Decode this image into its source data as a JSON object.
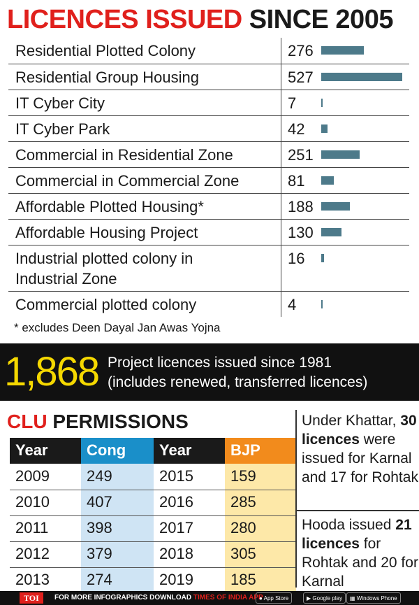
{
  "title": {
    "part1": "LICENCES ISSUED",
    "part2": "SINCE 2005"
  },
  "chart_data": {
    "type": "bar",
    "title": "LICENCES ISSUED SINCE 2005",
    "categories": [
      "Residential Plotted Colony",
      "Residential Group Housing",
      "IT Cyber City",
      "IT Cyber Park",
      "Commercial in Residential Zone",
      "Commercial in Commercial Zone",
      "Affordable Plotted Housing*",
      "Affordable Housing Project",
      "Industrial plotted colony in Industrial Zone",
      "Commercial plotted colony"
    ],
    "values": [
      276,
      527,
      7,
      42,
      251,
      81,
      188,
      130,
      16,
      4
    ],
    "bar_color": "#4d7a8a",
    "footnote": "* excludes Deen Dayal Jan Awas Yojna"
  },
  "category_lines": [
    [
      "Residential Plotted Colony"
    ],
    [
      "Residential Group Housing"
    ],
    [
      "IT Cyber City"
    ],
    [
      "IT Cyber Park"
    ],
    [
      "Commercial in Residential Zone"
    ],
    [
      "Commercial in Commercial Zone"
    ],
    [
      "Affordable Plotted Housing*"
    ],
    [
      "Affordable Housing Project"
    ],
    [
      "Industrial plotted colony in",
      "Industrial Zone"
    ],
    [
      "Commercial plotted colony"
    ]
  ],
  "highlight": {
    "number": "1,868",
    "line1": "Project licences issued since 1981",
    "line2": "(includes renewed, transferred licences)"
  },
  "clu": {
    "title_part1": "CLU",
    "title_part2": "PERMISSIONS",
    "headers": [
      "Year",
      "Cong",
      "Year",
      "BJP"
    ],
    "rows": [
      [
        "2009",
        "249",
        "2015",
        "159"
      ],
      [
        "2010",
        "407",
        "2016",
        "285"
      ],
      [
        "2011",
        "398",
        "2017",
        "280"
      ],
      [
        "2012",
        "379",
        "2018",
        "305"
      ],
      [
        "2013",
        "274",
        "2019",
        "185"
      ]
    ]
  },
  "side_notes": {
    "khattar": {
      "pre": "Under Khattar,",
      "bold": "30 licences",
      "post": "were issued for Karnal and 17 for Rohtak"
    },
    "hooda": {
      "pre": "Hooda issued",
      "bold": "21 licences",
      "post": "for Rohtak and 20 for Karnal"
    }
  },
  "footer": {
    "brand": "TOI",
    "text1": "FOR MORE INFOGRAPHICS DOWNLOAD",
    "text2": "TIMES OF INDIA APP",
    "app_store": "App Store",
    "google_play": "Google play",
    "windows": "Windows Phone"
  },
  "colors": {
    "accent_red": "#e0201c",
    "highlight_yellow": "#f5d800",
    "cong_blue": "#1a8fc9",
    "bjp_orange": "#f28b1c"
  }
}
